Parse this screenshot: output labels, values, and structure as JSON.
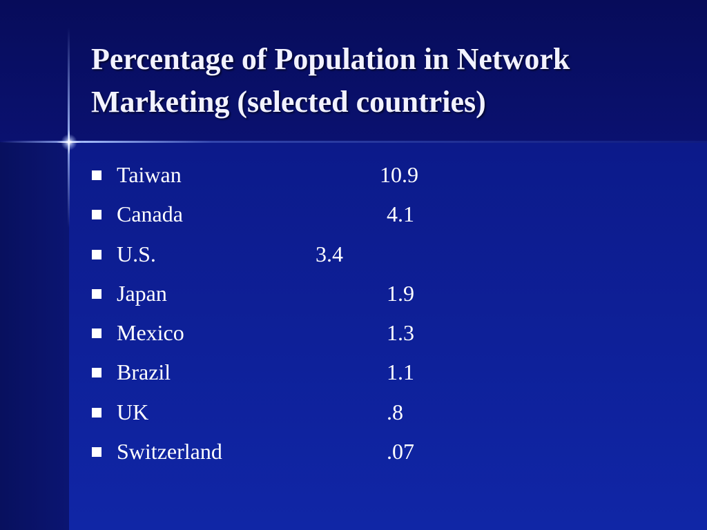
{
  "slide": {
    "title_line1": "Percentage of Population in Network",
    "title_line2": "Marketing (selected countries)",
    "items": [
      {
        "country": "Taiwan",
        "value": "10.9"
      },
      {
        "country": "Canada",
        "value": "4.1"
      },
      {
        "country": "U.S.",
        "value": "3.4"
      },
      {
        "country": "Japan",
        "value": "1.9"
      },
      {
        "country": "Mexico",
        "value": "1.3"
      },
      {
        "country": "Brazil",
        "value": "1.1"
      },
      {
        "country": "UK",
        "value": ".8"
      },
      {
        "country": "Switzerland",
        "value": ".07"
      }
    ]
  },
  "colors": {
    "background": "#0b1170",
    "text": "#ffffff"
  }
}
